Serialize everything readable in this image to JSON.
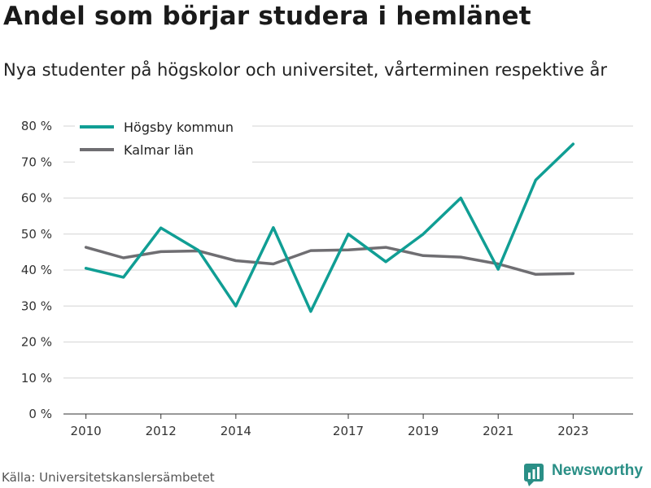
{
  "title": "Andel som börjar studera i hemlänet",
  "subtitle": "Nya studenter på högskolor och universitet, vårterminen respektive år",
  "source": "Källa: Universitetskanslersämbetet",
  "brand": {
    "name": "Newsworthy",
    "color": "#2a8f86",
    "icon": "bar-chart-logo-icon"
  },
  "chart_data": {
    "type": "line",
    "title": "Andel som börjar studera i hemlänet",
    "subtitle": "Nya studenter på högskolor och universitet, vårterminen respektive år",
    "x": [
      2010,
      2011,
      2012,
      2013,
      2014,
      2015,
      2016,
      2017,
      2018,
      2019,
      2020,
      2021,
      2022,
      2023
    ],
    "x_tick_values": [
      2010,
      2012,
      2014,
      2017,
      2019,
      2021,
      2023
    ],
    "x_tick_labels": [
      "2010",
      "2012",
      "2014",
      "2017",
      "2019",
      "2021",
      "2023"
    ],
    "y_tick_values": [
      0,
      10,
      20,
      30,
      40,
      50,
      60,
      70,
      80
    ],
    "y_tick_labels": [
      "0 %",
      "10 %",
      "20 %",
      "30 %",
      "40 %",
      "50 %",
      "60 %",
      "70 %",
      "80 %"
    ],
    "xlim": [
      2009.4,
      2024.6
    ],
    "ylim": [
      0,
      80
    ],
    "grid": true,
    "legend": "top-left",
    "series": [
      {
        "name": "Högsby kommun",
        "color": "#109e94",
        "values": [
          40.5,
          38,
          51.7,
          45.5,
          30,
          51.8,
          28.5,
          50,
          42.3,
          50,
          60,
          40.2,
          65,
          75
        ]
      },
      {
        "name": "Kalmar län",
        "color": "#6f6e72",
        "values": [
          46.3,
          43.4,
          45.1,
          45.3,
          42.6,
          41.7,
          45.4,
          45.6,
          46.3,
          44,
          43.6,
          41.7,
          38.8,
          39
        ]
      }
    ]
  }
}
